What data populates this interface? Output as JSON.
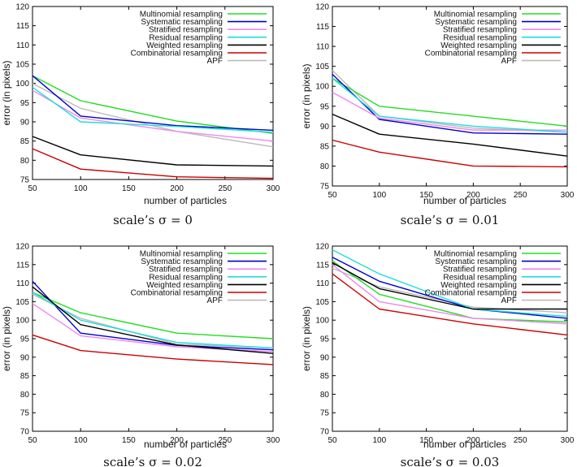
{
  "legend_entries": [
    "Multinomial resampling",
    "Systematic resampling",
    "Stratified resampling",
    "Residual resampling",
    "Weighted resampling",
    "Combinatorial resampling",
    "APF"
  ],
  "series_colors": [
    "#22dd22",
    "#0000cc",
    "#ee88ee",
    "#22dddd",
    "#000000",
    "#cc0000",
    "#bbbbbb"
  ],
  "chart_data": [
    {
      "type": "line",
      "caption": "scale’s σ = 0",
      "xlabel": "number of particles",
      "ylabel": "error (in pixels)",
      "xlim": [
        50,
        300
      ],
      "ylim": [
        75,
        120
      ],
      "xticks": [
        50,
        100,
        150,
        200,
        250,
        300
      ],
      "yticks": [
        75,
        80,
        85,
        90,
        95,
        100,
        105,
        110,
        115,
        120
      ],
      "x": [
        50,
        100,
        200,
        300
      ],
      "series": [
        {
          "name": "Multinomial resampling",
          "values": [
            102,
            95.5,
            90.2,
            87
          ]
        },
        {
          "name": "Systematic resampling",
          "values": [
            102,
            91.5,
            89,
            87.8
          ]
        },
        {
          "name": "Stratified resampling",
          "values": [
            98.2,
            91,
            87.5,
            85
          ]
        },
        {
          "name": "Residual resampling",
          "values": [
            99,
            90,
            88.8,
            87.3
          ]
        },
        {
          "name": "Weighted resampling",
          "values": [
            86.2,
            81.4,
            78.8,
            78.5
          ]
        },
        {
          "name": "Combinatorial resampling",
          "values": [
            83,
            77.7,
            75.7,
            75.3
          ]
        },
        {
          "name": "APF",
          "values": [
            100,
            93.5,
            87.5,
            83.5
          ]
        }
      ]
    },
    {
      "type": "line",
      "caption": "scale’s σ = 0.01",
      "xlabel": "number of particles",
      "ylabel": "error (in pixels)",
      "xlim": [
        50,
        300
      ],
      "ylim": [
        75,
        120
      ],
      "xticks": [
        50,
        100,
        150,
        200,
        250,
        300
      ],
      "yticks": [
        75,
        80,
        85,
        90,
        95,
        100,
        105,
        110,
        115,
        120
      ],
      "x": [
        50,
        100,
        200,
        300
      ],
      "series": [
        {
          "name": "Multinomial resampling",
          "values": [
            102,
            95,
            92.5,
            90
          ]
        },
        {
          "name": "Systematic resampling",
          "values": [
            103,
            91.7,
            88.3,
            88
          ]
        },
        {
          "name": "Stratified resampling",
          "values": [
            98.5,
            92,
            89,
            89
          ]
        },
        {
          "name": "Residual resampling",
          "values": [
            102,
            92.5,
            90,
            88.5
          ]
        },
        {
          "name": "Weighted resampling",
          "values": [
            93,
            88,
            85.5,
            82.5
          ]
        },
        {
          "name": "Combinatorial resampling",
          "values": [
            86.5,
            83.5,
            80,
            79.8
          ]
        },
        {
          "name": "APF",
          "values": [
            104,
            92.5,
            89.5,
            88.5
          ]
        }
      ]
    },
    {
      "type": "line",
      "caption": "scale’s σ = 0.02",
      "xlabel": "number of particles",
      "ylabel": "error (in pixels)",
      "xlim": [
        50,
        300
      ],
      "ylim": [
        70,
        120
      ],
      "xticks": [
        50,
        100,
        150,
        200,
        250,
        300
      ],
      "yticks": [
        70,
        75,
        80,
        85,
        90,
        95,
        100,
        105,
        110,
        115,
        120
      ],
      "x": [
        50,
        100,
        200,
        300
      ],
      "series": [
        {
          "name": "Multinomial resampling",
          "values": [
            107.5,
            102,
            96.5,
            95
          ]
        },
        {
          "name": "Systematic resampling",
          "values": [
            110.5,
            96.5,
            93.2,
            92
          ]
        },
        {
          "name": "Stratified resampling",
          "values": [
            104.5,
            95.8,
            92.8,
            91.5
          ]
        },
        {
          "name": "Residual resampling",
          "values": [
            107.5,
            100,
            94,
            92.5
          ]
        },
        {
          "name": "Weighted resampling",
          "values": [
            109,
            98.8,
            93.3,
            91
          ]
        },
        {
          "name": "Combinatorial resampling",
          "values": [
            96,
            91.8,
            89.5,
            88
          ]
        },
        {
          "name": "APF",
          "values": [
            107,
            100.5,
            93.5,
            92.5
          ]
        }
      ]
    },
    {
      "type": "line",
      "caption": "scale’s σ = 0.03",
      "xlabel": "number of particles",
      "ylabel": "error (in pixels)",
      "xlim": [
        50,
        300
      ],
      "ylim": [
        70,
        120
      ],
      "xticks": [
        50,
        100,
        150,
        200,
        250,
        300
      ],
      "yticks": [
        70,
        75,
        80,
        85,
        90,
        95,
        100,
        105,
        110,
        115,
        120
      ],
      "x": [
        50,
        100,
        200,
        300
      ],
      "series": [
        {
          "name": "Multinomial resampling",
          "values": [
            116,
            107,
            100.5,
            99.5
          ]
        },
        {
          "name": "Systematic resampling",
          "values": [
            117,
            110.5,
            103,
            100.5
          ]
        },
        {
          "name": "Stratified resampling",
          "values": [
            115,
            105,
            100.5,
            99
          ]
        },
        {
          "name": "Residual resampling",
          "values": [
            119,
            112.5,
            103,
            101
          ]
        },
        {
          "name": "Weighted resampling",
          "values": [
            115.5,
            108.5,
            103,
            103
          ]
        },
        {
          "name": "Combinatorial resampling",
          "values": [
            112.5,
            103,
            99,
            96
          ]
        },
        {
          "name": "APF",
          "values": [
            114,
            109,
            103.5,
            102
          ]
        }
      ]
    }
  ]
}
